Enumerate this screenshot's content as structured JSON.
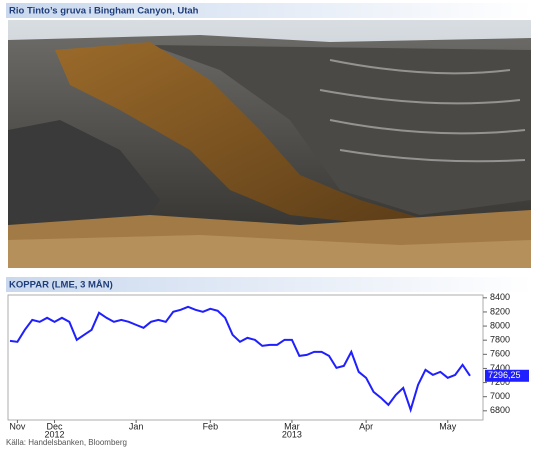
{
  "header": {
    "title": "Rio Tinto’s gruva i Bingham Canyon, Utah"
  },
  "chart_data": {
    "type": "line",
    "title": "KOPPAR (LME, 3 MÅN)",
    "categories": [
      null,
      "Nov",
      null,
      null,
      null,
      null,
      "Dec",
      null,
      null,
      null,
      null,
      null,
      null,
      null,
      null,
      null,
      null,
      "Jan",
      null,
      null,
      null,
      null,
      null,
      null,
      null,
      null,
      null,
      "Feb",
      null,
      null,
      null,
      null,
      null,
      null,
      null,
      null,
      null,
      null,
      "Mar",
      null,
      null,
      null,
      null,
      null,
      null,
      null,
      null,
      null,
      "Apr",
      null,
      null,
      null,
      null,
      null,
      null,
      null,
      null,
      null,
      null,
      "May",
      null,
      null,
      null
    ],
    "year_labels": [
      null,
      null,
      null,
      null,
      null,
      null,
      "2012",
      null,
      null,
      null,
      null,
      null,
      null,
      null,
      null,
      null,
      null,
      null,
      null,
      null,
      null,
      null,
      null,
      null,
      null,
      null,
      null,
      null,
      null,
      null,
      null,
      null,
      null,
      null,
      null,
      null,
      null,
      null,
      "2013",
      null,
      null,
      null,
      null,
      null,
      null,
      null,
      null,
      null,
      null,
      null,
      null,
      null,
      null,
      null,
      null,
      null,
      null,
      null,
      null,
      null,
      null,
      null,
      null
    ],
    "values": [
      7790,
      7777,
      7947,
      8088,
      8060,
      8117,
      8060,
      8117,
      8060,
      7805,
      7876,
      7947,
      8188,
      8117,
      8060,
      8088,
      8060,
      8017,
      7975,
      8060,
      8088,
      8060,
      8202,
      8230,
      8272,
      8230,
      8202,
      8244,
      8216,
      8117,
      7876,
      7777,
      7833,
      7805,
      7720,
      7734,
      7734,
      7805,
      7805,
      7578,
      7592,
      7635,
      7635,
      7578,
      7408,
      7436,
      7635,
      7352,
      7267,
      7068,
      6984,
      6884,
      7026,
      7125,
      6814,
      7168,
      7380,
      7309,
      7352,
      7267,
      7309,
      7451,
      7296.25
    ],
    "value_labels": [
      null,
      null,
      null,
      null,
      null,
      null,
      null,
      null,
      null,
      null,
      null,
      null,
      null,
      null,
      null,
      null,
      null,
      null,
      null,
      null,
      null,
      null,
      null,
      null,
      null,
      null,
      null,
      null,
      null,
      null,
      null,
      null,
      null,
      null,
      null,
      null,
      null,
      null,
      null,
      null,
      null,
      null,
      null,
      null,
      null,
      null,
      null,
      null,
      null,
      null,
      null,
      null,
      null,
      null,
      null,
      null,
      null,
      null,
      null,
      null,
      null,
      null,
      "7296,25"
    ],
    "color": "#1f1fff",
    "ylim": [
      6670,
      8440
    ],
    "yticks": [
      6800,
      7000,
      7200,
      7400,
      7600,
      7800,
      8000,
      8200,
      8400
    ],
    "y_axis_side": "right",
    "source": "Källa: Handelsbanken, Bloomberg"
  }
}
